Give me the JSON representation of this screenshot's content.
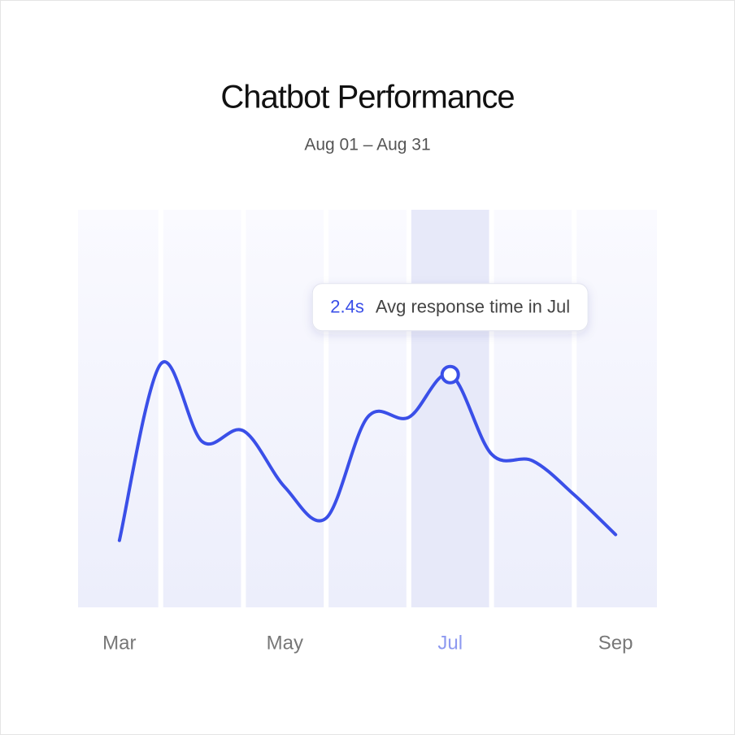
{
  "chart_data": {
    "type": "line",
    "title": "Chatbot Performance",
    "subtitle": "Aug 01 – Aug 31",
    "categories": [
      "Mar",
      null,
      null,
      null,
      "May",
      null,
      null,
      null,
      "Jul",
      null,
      null,
      null,
      "Sep"
    ],
    "values": [
      0.69,
      2.51,
      1.71,
      1.82,
      1.24,
      0.92,
      1.96,
      1.96,
      2.4,
      1.58,
      1.51,
      1.16,
      0.75
    ],
    "value_labels": [
      null,
      null,
      null,
      null,
      null,
      null,
      null,
      null,
      "2.4s",
      null,
      null,
      null,
      null
    ],
    "annotation": "Avg response time in Jul",
    "color": "#3a4fe8",
    "ylim": [
      0,
      4.1
    ],
    "grid": false
  }
}
